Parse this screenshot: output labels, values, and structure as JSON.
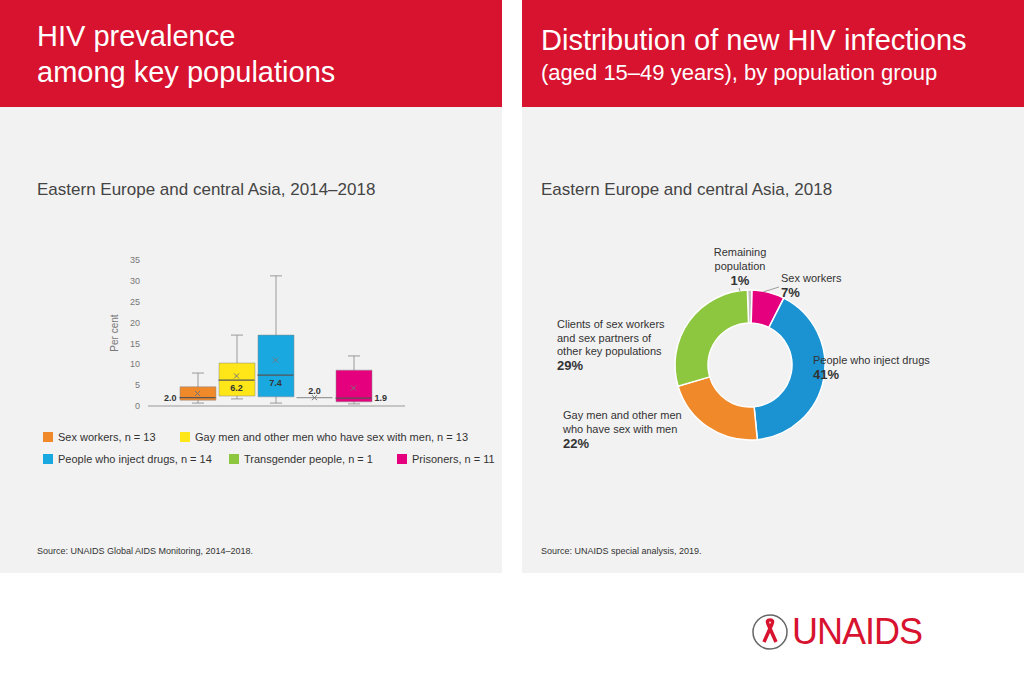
{
  "logo": "UNAIDS",
  "chart_data": [
    {
      "type": "box",
      "header": [
        "HIV prevalence",
        "among key populations"
      ],
      "title": "Eastern Europe and central Asia, 2014–2018",
      "source": "Source: UNAIDS Global AIDS Monitoring, 2014–2018.",
      "y_label": "Per cent",
      "ylim": [
        0,
        35
      ],
      "yticks": [
        0,
        5,
        10,
        15,
        20,
        25,
        30,
        35
      ],
      "tick_labels": "y",
      "data_labels": true,
      "legend": "bottom",
      "series": [
        {
          "name": "Sex workers, n = 13",
          "color": "#f0892a",
          "min": 0.7,
          "q1": 1.4,
          "median": 2.0,
          "q3": 4.6,
          "max": 7.9,
          "mean": 3.0,
          "median_label": "2.0"
        },
        {
          "name": "Gay men and other men who have sex with men, n = 13",
          "color": "#ffe619",
          "min": 1.7,
          "q1": 2.4,
          "median": 6.2,
          "q3": 10.3,
          "max": 17.0,
          "mean": 7.2,
          "median_label": "6.2"
        },
        {
          "name": "People who inject drugs, n = 14",
          "color": "#1aa8e0",
          "min": 0.7,
          "q1": 2.2,
          "median": 7.4,
          "q3": 17.0,
          "max": 31.2,
          "mean": 11.0,
          "median_label": "7.4"
        },
        {
          "name": "Transgender people, n = 1",
          "color": "#8dc63f",
          "min": 2.0,
          "q1": 2.0,
          "median": 2.0,
          "q3": 2.0,
          "max": 2.0,
          "mean": 2.0,
          "median_label": "2.0"
        },
        {
          "name": "Prisoners, n = 11",
          "color": "#e5007e",
          "min": 0.5,
          "q1": 1.0,
          "median": 1.9,
          "q3": 8.6,
          "max": 12.0,
          "mean": 4.3,
          "median_label": "1.9"
        }
      ]
    },
    {
      "type": "pie",
      "header": [
        "Distribution of new HIV infections",
        "(aged 15–49 years), by population group"
      ],
      "title": "Eastern Europe and central Asia, 2018",
      "source": "Source: UNAIDS special analysis, 2019.",
      "categories": [
        "Remaining population",
        "Sex workers",
        "People who inject drugs",
        "Gay men and other men who have sex with men",
        "Clients of sex workers and sex partners of other key populations"
      ],
      "values": [
        1,
        7,
        41,
        22,
        29
      ],
      "value_labels": [
        "1%",
        "7%",
        "41%",
        "22%",
        "29%"
      ],
      "colors": [
        "#bfbfbf",
        "#e5007e",
        "#1b93d2",
        "#f0892a",
        "#8dc63f"
      ],
      "data_labels": true
    }
  ]
}
